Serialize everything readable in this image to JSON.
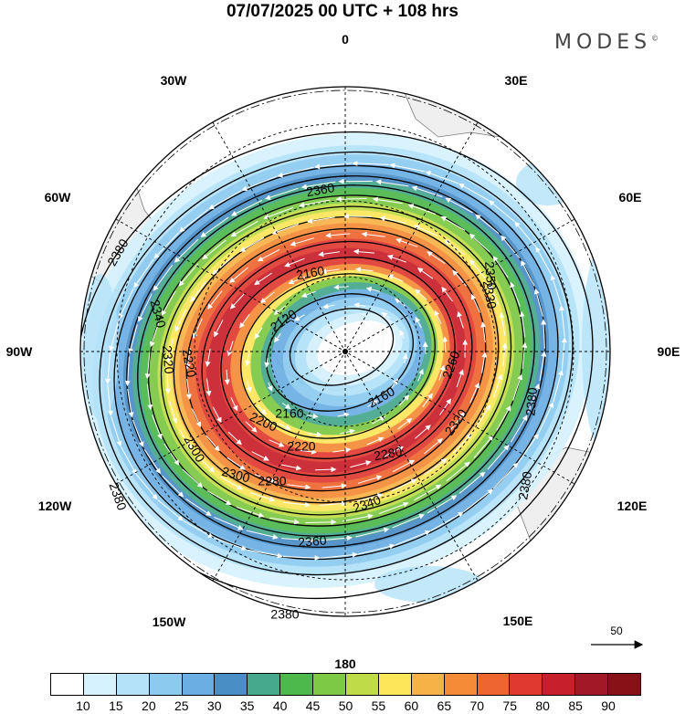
{
  "header": {
    "title": "07/07/2025  00 UTC  + 108 hrs",
    "brand": "MODES",
    "brand_mark": "©"
  },
  "longitude_labels": {
    "top": "0",
    "top_right_30": "30E",
    "right_60": "60E",
    "right_90": "90E",
    "right_120": "120E",
    "right_150": "150E",
    "bottom": "180",
    "left_150": "150W",
    "left_120": "120W",
    "left_90": "90W",
    "left_60": "60W",
    "left_30": "30W"
  },
  "map": {
    "projection": "south polar stereographic",
    "contour_unit_labels": [
      "2120",
      "2160",
      "2160",
      "2160",
      "2200",
      "2220",
      "2220",
      "2260",
      "2280",
      "2280",
      "2300",
      "2300",
      "2320",
      "2320",
      "2330",
      "2340",
      "2340",
      "2350",
      "2360",
      "2360",
      "2380",
      "2380",
      "2380",
      "2380",
      "2380"
    ],
    "land_color": "#efefef",
    "grid_style": "dashed"
  },
  "reference_vector": {
    "value": "50"
  },
  "legend": {
    "colors": [
      "#ffffff",
      "#d6f2fe",
      "#b3e2f9",
      "#8ccaf0",
      "#6aaee3",
      "#4a8ec6",
      "#46a88d",
      "#4db84b",
      "#7dc844",
      "#bfdc48",
      "#fce65a",
      "#f7b247",
      "#f58a37",
      "#ee6530",
      "#e03a30",
      "#c8202b",
      "#a31826",
      "#861218"
    ],
    "tick_labels": [
      "10",
      "15",
      "20",
      "25",
      "30",
      "35",
      "40",
      "45",
      "50",
      "55",
      "60",
      "65",
      "70",
      "75",
      "80",
      "85",
      "90"
    ]
  }
}
